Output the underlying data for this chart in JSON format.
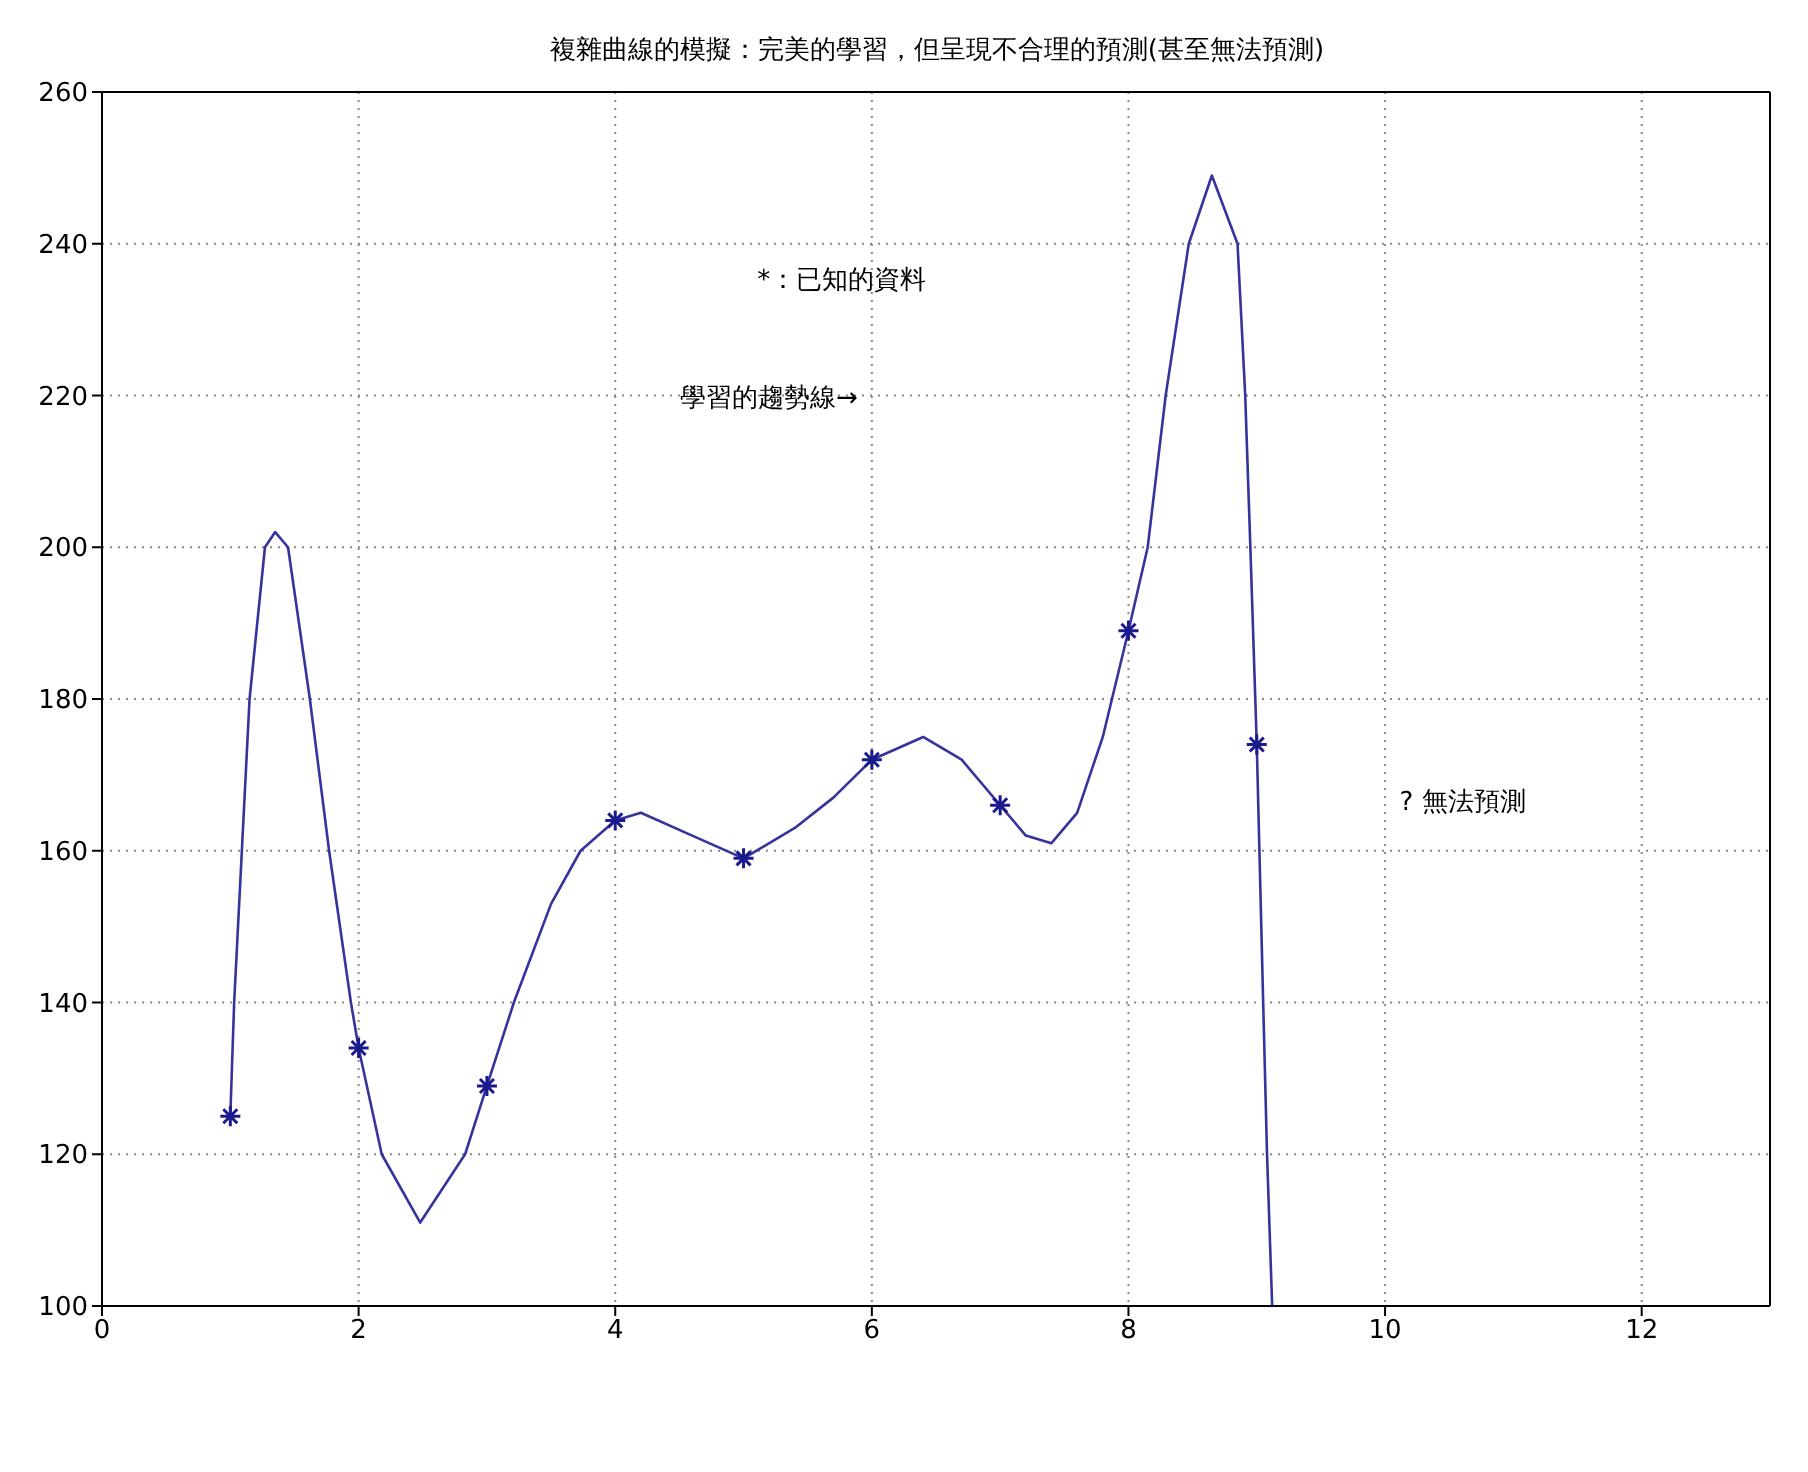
{
  "chart_data": {
    "type": "line",
    "title": "複雜曲線的模擬：完美的學習，但呈現不合理的預測(甚至無法預測)",
    "series": [
      {
        "type": "line",
        "color": "#34349c",
        "marker": "none",
        "x": [
          1,
          1.03,
          1.09,
          1.15,
          1.27,
          1.35,
          1.45,
          1.62,
          1.77,
          1.94,
          2,
          2.18,
          2.48,
          2.83,
          3,
          3.21,
          3.5,
          3.73,
          4,
          4.2,
          4.6,
          5,
          5.4,
          5.7,
          6,
          6.4,
          6.7,
          7,
          7.2,
          7.4,
          7.6,
          7.8,
          8,
          8.15,
          8.29,
          8.47,
          8.65,
          8.85,
          8.91,
          8.95,
          9,
          9.05,
          9.08,
          9.12
        ],
        "values": [
          125,
          140,
          160,
          180,
          200,
          202,
          200,
          180,
          160,
          140,
          134,
          120,
          111,
          120,
          129,
          140,
          153,
          160,
          164,
          165,
          162,
          159,
          163,
          167,
          172,
          175,
          172,
          166,
          162,
          161,
          165,
          175,
          189,
          200,
          220,
          240,
          249,
          240,
          220,
          200,
          174,
          140,
          120,
          100
        ]
      },
      {
        "type": "scatter",
        "color": "#1a1a8c",
        "marker": "cross",
        "x": [
          1,
          2,
          3,
          4,
          5,
          6,
          7,
          8,
          9
        ],
        "values": [
          125,
          134,
          129,
          164,
          159,
          172,
          166,
          189,
          174
        ]
      }
    ],
    "annotations": [
      "*：已知的資料",
      "學習的趨勢線→",
      "? 無法預測"
    ],
    "xlim": [
      0,
      13
    ],
    "xticks": [
      0,
      2,
      4,
      6,
      8,
      10,
      12
    ],
    "ylim": [
      100,
      260
    ],
    "yticks": [
      100,
      120,
      140,
      160,
      180,
      200,
      220,
      240,
      260
    ],
    "grid": true
  }
}
